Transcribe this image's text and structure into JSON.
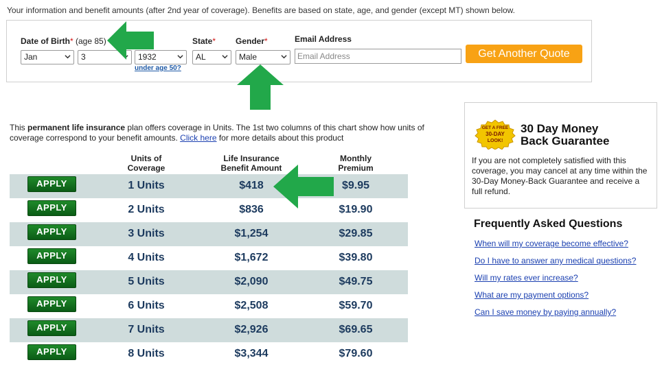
{
  "intro_text": "Your information and benefit amounts (after 2nd year of coverage). Benefits are based on state, age, and gender (except MT) shown below.",
  "form": {
    "dob_label": "Date of Birth",
    "required_mark": "*",
    "age_note": "(age 85)",
    "dob_month": "Jan",
    "dob_day": "3",
    "dob_year": "1932",
    "under_age_link": "under age 50?",
    "state_label": "State",
    "state_value": "AL",
    "gender_label": "Gender",
    "gender_value": "Male",
    "email_label": "Email Address",
    "email_placeholder": "Email Address",
    "quote_button": "Get Another Quote",
    "quote_button_color": "#f8a214"
  },
  "description": {
    "text1": "This ",
    "bold": "permanent life insurance",
    "text2": " plan offers coverage in Units. The 1st two columns of this chart show how units of coverage correspond to your benefit amounts. ",
    "link": "Click here",
    "text3": " for more details about this product"
  },
  "table": {
    "headers": [
      "Units of\nCoverage",
      "Life Insurance\nBenefit Amount",
      "Monthly\nPremium"
    ],
    "apply_label": "APPLY",
    "rows": [
      {
        "units": "1 Units",
        "benefit": "$418",
        "premium": "$9.95"
      },
      {
        "units": "2 Units",
        "benefit": "$836",
        "premium": "$19.90"
      },
      {
        "units": "3 Units",
        "benefit": "$1,254",
        "premium": "$29.85"
      },
      {
        "units": "4 Units",
        "benefit": "$1,672",
        "premium": "$39.80"
      },
      {
        "units": "5 Units",
        "benefit": "$2,090",
        "premium": "$49.75"
      },
      {
        "units": "6 Units",
        "benefit": "$2,508",
        "premium": "$59.70"
      },
      {
        "units": "7 Units",
        "benefit": "$2,926",
        "premium": "$69.65"
      },
      {
        "units": "8 Units",
        "benefit": "$3,344",
        "premium": "$79.60"
      }
    ]
  },
  "guarantee": {
    "badge_lines": [
      "GET A FREE",
      "30-DAY",
      "LOOK!"
    ],
    "title_line1": "30 Day Money",
    "title_line2": "Back Guarantee",
    "text": "If you are not completely satisfied with this coverage, you may cancel at any time within the 30-Day Money-Back Guarantee and receive a full refund."
  },
  "faq": {
    "title": "Frequently Asked Questions",
    "links": [
      "When will my coverage become effective?",
      "Do I have to answer any medical questions?",
      "Will my rates ever increase?",
      "What are my payment options?",
      "Can I save money by paying annually?"
    ]
  },
  "colors": {
    "row_shade": "#cfdcdc",
    "apply_green": "#1f8a2b",
    "arrow_green": "#22a84a",
    "link_blue": "#1a3fb0"
  }
}
